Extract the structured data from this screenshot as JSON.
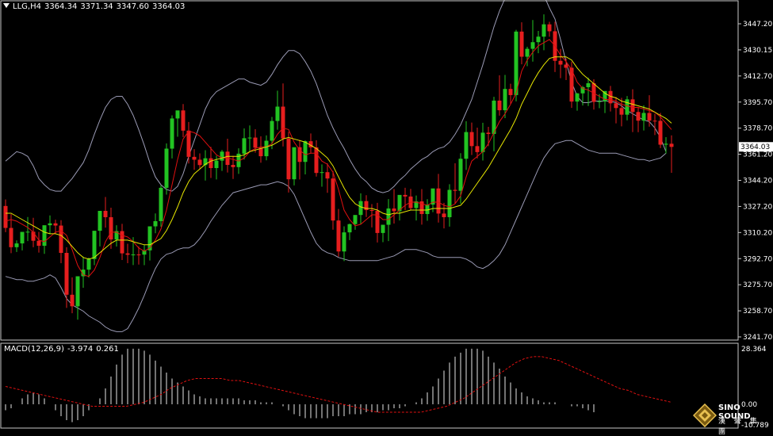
{
  "header": {
    "symbol": "LLG,H4",
    "open": "3364.34",
    "high": "3371.34",
    "low": "3347.60",
    "close": "3364.03"
  },
  "price_axis": {
    "labels": [
      "3447.20",
      "3430.15",
      "3412.70",
      "3395.70",
      "3378.70",
      "3361.20",
      "3344.20",
      "3327.20",
      "3310.20",
      "3292.70",
      "3275.70",
      "3258.70",
      "3241.70"
    ],
    "current_price": "3364.03"
  },
  "macd": {
    "label": "MACD(12,26,9)",
    "main": "-3.974",
    "signal": "0.261",
    "axis_labels": [
      "28.364",
      "0.00",
      "-10.789"
    ]
  },
  "logo": {
    "name": "SINO SOUND",
    "subtitle": "漢 聲 集 團"
  },
  "colors": {
    "background": "#000000",
    "bull_candle": "#22c322",
    "bear_candle": "#e61e1e",
    "bollinger": "#9a9ab4",
    "fast_ma": "#e01010",
    "slow_ma": "#e6e600",
    "macd_hist": "#e6e6e6",
    "macd_signal": "#e01010",
    "grid_frame": "#c8c8c8"
  },
  "chart_data": {
    "type": "candlestick",
    "price_range": [
      3241.7,
      3457.0
    ],
    "opens": [
      3326.6,
      3312.7,
      3300.5,
      3302.9,
      3310.2,
      3310.3,
      3304.6,
      3301.4,
      3314.4,
      3315.6,
      3314.2,
      3296.9,
      3270.4,
      3263.1,
      3282.1,
      3286.3,
      3293.0,
      3310.9,
      3323.5,
      3319.5,
      3305.4,
      3310.7,
      3296.6,
      3295.7,
      3295.9,
      3295.8,
      3298.5,
      3313.7,
      3317.0,
      3338.1,
      3362.9,
      3382.0,
      3387.1,
      3374.3,
      3357.7,
      3355.9,
      3352.5,
      3356.8,
      3350.6,
      3355.3,
      3361.0,
      3352.6,
      3351.2,
      3359.7,
      3369.5,
      3369.9,
      3363.5,
      3358.1,
      3367.9,
      3380.4,
      3389.5,
      3369.3,
      3343.5,
      3363.8,
      3354.5,
      3367.6,
      3363.7,
      3347.5,
      3348.0,
      3344.0,
      3317.4,
      3297.8,
      3309.9,
      3315.1,
      3320.9,
      3329.7,
      3324.0,
      3323.5,
      3309.5,
      3314.7,
      3325.0,
      3323.3,
      3333.6,
      3332.6,
      3325.3,
      3329.5,
      3321.5,
      3327.5,
      3337.7,
      3321.8,
      3319.5,
      3336.8,
      3336.2,
      3356.5,
      3373.4,
      3364.5,
      3360.7,
      3373.0,
      3372.2,
      3393.3,
      3387.2,
      3400.7,
      3396.8,
      3437.0,
      3421.1,
      3426.1,
      3430.3,
      3433.8,
      3441.6,
      3437.2,
      3418.5,
      3416.1,
      3414.1,
      3392.7,
      3397.9,
      3401.8,
      3404.3,
      3392.5,
      3392.9,
      3399.4,
      3391.6,
      3388.6,
      3384.4,
      3394.1,
      3386.1,
      3380.6,
      3385.5,
      3380.6,
      3380.5,
      3365.4,
      3366.0
    ],
    "highs": [
      3330.7,
      3321.5,
      3304.8,
      3307.1,
      3319.6,
      3319.1,
      3310.2,
      3305.4,
      3320.6,
      3317.9,
      3317.6,
      3300.5,
      3281.4,
      3269.3,
      3294.5,
      3293.9,
      3300.8,
      3316.2,
      3332.3,
      3325.5,
      3314.4,
      3315.3,
      3302.7,
      3306.9,
      3300.9,
      3302.0,
      3313.4,
      3321.9,
      3339.6,
      3366.2,
      3384.0,
      3385.5,
      3391.1,
      3379.8,
      3362.6,
      3359.9,
      3361.9,
      3364.0,
      3358.4,
      3362.1,
      3369.2,
      3358.4,
      3363.1,
      3375.7,
      3377.6,
      3375.2,
      3370.7,
      3371.3,
      3383.0,
      3399.6,
      3404.2,
      3373.6,
      3361.6,
      3368.4,
      3368.1,
      3372.5,
      3368.2,
      3352.9,
      3353.6,
      3348.7,
      3324.7,
      3313.7,
      3315.4,
      3319.5,
      3334.6,
      3333.4,
      3327.8,
      3328.6,
      3314.6,
      3331.0,
      3337.3,
      3325.5,
      3338.1,
      3337.4,
      3333.2,
      3337.3,
      3330.9,
      3336.7,
      3346.9,
      3328.6,
      3340.4,
      3353.6,
      3360.0,
      3380.3,
      3379.4,
      3376.2,
      3379.3,
      3376.7,
      3395.7,
      3409.3,
      3409.6,
      3404.0,
      3438.1,
      3442.9,
      3427.4,
      3444.3,
      3437.4,
      3447.9,
      3443.2,
      3443.2,
      3426.1,
      3420.0,
      3418.0,
      3398.1,
      3402.6,
      3407.9,
      3406.8,
      3397.4,
      3398.1,
      3402.6,
      3395.6,
      3395.1,
      3396.2,
      3400.5,
      3389.2,
      3390.3,
      3396.7,
      3385.0,
      3385.5,
      3370.2,
      3371.3
    ],
    "lows": [
      3310.0,
      3296.7,
      3297.5,
      3298.5,
      3304.4,
      3300.5,
      3297.1,
      3296.3,
      3308.8,
      3309.2,
      3290.4,
      3262.1,
      3258.7,
      3254.6,
      3274.8,
      3281.2,
      3289.1,
      3301.0,
      3312.9,
      3299.5,
      3300.9,
      3292.4,
      3290.4,
      3289.2,
      3289.5,
      3289.1,
      3292.1,
      3309.3,
      3313.5,
      3333.8,
      3356.7,
      3370.4,
      3370.2,
      3353.5,
      3349.5,
      3350.2,
      3342.7,
      3344.3,
      3343.4,
      3348.8,
      3347.8,
      3343.7,
      3346.9,
      3356.0,
      3361.1,
      3360.4,
      3354.0,
      3355.5,
      3362.6,
      3374.9,
      3364.3,
      3335.1,
      3339.6,
      3343.4,
      3346.6,
      3359.9,
      3345.2,
      3338.8,
      3334.9,
      3311.6,
      3294.5,
      3291.7,
      3305.0,
      3311.5,
      3314.9,
      3319.6,
      3313.0,
      3303.5,
      3303.7,
      3304.4,
      3315.5,
      3317.4,
      3324.0,
      3323.9,
      3317.4,
      3314.8,
      3317.2,
      3322.7,
      3316.1,
      3312.4,
      3313.5,
      3328.0,
      3328.0,
      3349.4,
      3358.9,
      3356.7,
      3355.4,
      3364.5,
      3361.2,
      3383.8,
      3382.2,
      3391.3,
      3392.8,
      3416.3,
      3415.1,
      3418.0,
      3423.3,
      3425.2,
      3433.7,
      3411.4,
      3407.5,
      3406.3,
      3388.7,
      3386.9,
      3390.2,
      3389.9,
      3387.6,
      3388.5,
      3385.4,
      3386.4,
      3378.9,
      3377.0,
      3380.8,
      3373.4,
      3373.3,
      3374.4,
      3376.8,
      3371.5,
      3363.3,
      3359.8,
      3347.6
    ],
    "closes": [
      3312.7,
      3300.5,
      3302.9,
      3310.2,
      3310.3,
      3304.6,
      3301.4,
      3314.4,
      3315.6,
      3314.2,
      3296.9,
      3270.4,
      3263.1,
      3282.1,
      3286.3,
      3293.0,
      3310.9,
      3323.5,
      3319.5,
      3305.4,
      3310.7,
      3296.6,
      3295.7,
      3295.9,
      3295.8,
      3298.5,
      3313.7,
      3317.0,
      3338.1,
      3362.9,
      3382.0,
      3387.1,
      3374.3,
      3357.7,
      3355.9,
      3352.5,
      3356.8,
      3350.6,
      3355.3,
      3361.0,
      3352.6,
      3351.2,
      3359.7,
      3369.5,
      3369.9,
      3363.5,
      3358.1,
      3367.9,
      3380.4,
      3389.5,
      3369.3,
      3343.5,
      3363.8,
      3354.5,
      3367.6,
      3363.7,
      3347.5,
      3348.0,
      3344.0,
      3317.4,
      3297.8,
      3309.9,
      3315.1,
      3320.9,
      3329.7,
      3324.0,
      3323.5,
      3309.5,
      3314.7,
      3325.0,
      3323.3,
      3333.6,
      3332.6,
      3325.3,
      3329.5,
      3321.5,
      3327.5,
      3337.7,
      3321.8,
      3319.5,
      3336.8,
      3336.2,
      3356.5,
      3373.4,
      3364.5,
      3360.7,
      3373.0,
      3372.2,
      3393.3,
      3387.2,
      3400.7,
      3396.8,
      3437.0,
      3421.1,
      3426.1,
      3430.3,
      3433.8,
      3441.6,
      3437.2,
      3418.5,
      3416.1,
      3414.1,
      3392.7,
      3397.9,
      3401.8,
      3404.3,
      3392.5,
      3392.9,
      3399.4,
      3391.6,
      3388.6,
      3384.4,
      3394.1,
      3386.1,
      3380.6,
      3385.5,
      3380.6,
      3380.5,
      3365.4,
      3366.0,
      3364.0
    ],
    "bollinger_upper": [
      3355,
      3358,
      3361,
      3360,
      3358,
      3352,
      3344,
      3340,
      3337,
      3336,
      3336,
      3340,
      3344,
      3349,
      3354,
      3362,
      3372,
      3381,
      3389,
      3394,
      3396,
      3396,
      3391,
      3384,
      3375,
      3365,
      3354,
      3345,
      3340,
      3337,
      3336,
      3339,
      3347,
      3358,
      3368,
      3378,
      3388,
      3395,
      3399,
      3401,
      3403,
      3405,
      3407,
      3407,
      3405,
      3404,
      3403,
      3405,
      3410,
      3416,
      3421,
      3425,
      3425,
      3423,
      3418,
      3412,
      3404,
      3394,
      3384,
      3376,
      3369,
      3363,
      3356,
      3350,
      3345,
      3342,
      3338,
      3336,
      3335,
      3336,
      3339,
      3343,
      3346,
      3350,
      3353,
      3356,
      3358,
      3361,
      3363,
      3364,
      3367,
      3372,
      3378,
      3386,
      3394,
      3405,
      3416,
      3428,
      3440,
      3450,
      3458,
      3464,
      3468,
      3471,
      3471,
      3470,
      3465,
      3460,
      3452,
      3445,
      3432,
      3418,
      3405,
      3396,
      3392,
      3392,
      3393,
      3393,
      3393,
      3393,
      3392,
      3390,
      3387,
      3385,
      3383,
      3381,
      3380,
      3376,
      3370,
      3361
    ],
    "bollinger_lower": [
      3282,
      3281,
      3280,
      3280,
      3279,
      3279,
      3280,
      3281,
      3283,
      3281,
      3275,
      3268,
      3264,
      3262,
      3260,
      3257,
      3255,
      3253,
      3250,
      3248,
      3247,
      3247,
      3249,
      3255,
      3262,
      3270,
      3279,
      3287,
      3293,
      3296,
      3297,
      3299,
      3300,
      3300,
      3302,
      3306,
      3311,
      3317,
      3322,
      3327,
      3331,
      3335,
      3336,
      3337,
      3338,
      3339,
      3340,
      3340,
      3341,
      3342,
      3341,
      3339,
      3334,
      3326,
      3318,
      3310,
      3303,
      3299,
      3297,
      3296,
      3294,
      3293,
      3292,
      3292,
      3292,
      3292,
      3292,
      3292,
      3293,
      3294,
      3295,
      3297,
      3299,
      3299,
      3299,
      3298,
      3297,
      3295,
      3294,
      3294,
      3294,
      3294,
      3294,
      3293,
      3291,
      3288,
      3287,
      3289,
      3292,
      3296,
      3302,
      3310,
      3318,
      3326,
      3334,
      3342,
      3350,
      3357,
      3362,
      3366,
      3367,
      3368,
      3368,
      3366,
      3364,
      3362,
      3361,
      3360,
      3360,
      3360,
      3360,
      3359,
      3358,
      3357,
      3356,
      3356,
      3355,
      3356,
      3357,
      3360
    ],
    "fast_ma": [
      3317,
      3318,
      3317,
      3315,
      3313,
      3310,
      3305,
      3304,
      3307,
      3310,
      3311,
      3308,
      3299,
      3289,
      3283,
      3282,
      3286,
      3294,
      3304,
      3310,
      3310,
      3308,
      3307,
      3304,
      3300,
      3298,
      3300,
      3305,
      3312,
      3324,
      3340,
      3356,
      3369,
      3374,
      3373,
      3371,
      3367,
      3363,
      3359,
      3357,
      3357,
      3356,
      3355,
      3357,
      3361,
      3363,
      3364,
      3364,
      3366,
      3372,
      3376,
      3375,
      3367,
      3362,
      3359,
      3360,
      3360,
      3355,
      3353,
      3348,
      3337,
      3324,
      3318,
      3314,
      3315,
      3318,
      3321,
      3321,
      3318,
      3318,
      3321,
      3324,
      3327,
      3329,
      3329,
      3328,
      3327,
      3329,
      3329,
      3327,
      3326,
      3328,
      3333,
      3345,
      3355,
      3358,
      3361,
      3366,
      3373,
      3380,
      3385,
      3391,
      3398,
      3412,
      3419,
      3424,
      3428,
      3430,
      3432,
      3428,
      3422,
      3418,
      3413,
      3405,
      3401,
      3400,
      3398,
      3396,
      3394,
      3394,
      3393,
      3391,
      3390,
      3389,
      3389,
      3388,
      3387,
      3386,
      3383,
      3379,
      3375
    ],
    "slow_ma": [
      3322,
      3322,
      3320,
      3318,
      3316,
      3314,
      3312,
      3310,
      3309,
      3309,
      3308,
      3305,
      3301,
      3297,
      3294,
      3293,
      3294,
      3297,
      3300,
      3303,
      3305,
      3305,
      3305,
      3304,
      3303,
      3302,
      3302,
      3304,
      3306,
      3311,
      3318,
      3326,
      3335,
      3342,
      3347,
      3350,
      3353,
      3355,
      3356,
      3357,
      3358,
      3358,
      3358,
      3359,
      3361,
      3362,
      3363,
      3364,
      3365,
      3367,
      3369,
      3370,
      3369,
      3368,
      3367,
      3365,
      3363,
      3360,
      3357,
      3352,
      3345,
      3338,
      3332,
      3328,
      3326,
      3325,
      3325,
      3324,
      3322,
      3321,
      3322,
      3322,
      3323,
      3324,
      3324,
      3324,
      3324,
      3325,
      3325,
      3325,
      3325,
      3326,
      3327,
      3331,
      3336,
      3341,
      3346,
      3351,
      3357,
      3363,
      3369,
      3375,
      3382,
      3391,
      3398,
      3405,
      3411,
      3416,
      3420,
      3421,
      3421,
      3421,
      3419,
      3414,
      3410,
      3407,
      3404,
      3401,
      3398,
      3396,
      3395,
      3393,
      3392,
      3391,
      3390,
      3389,
      3388,
      3386,
      3384,
      3382,
      3379
    ],
    "macd_hist": [
      -3,
      -2,
      0,
      3,
      5,
      6,
      5,
      3,
      0,
      -3,
      -6,
      -8,
      -9,
      -8,
      -6,
      -3,
      0,
      3,
      8,
      14,
      20,
      25,
      28,
      28,
      28,
      27,
      25,
      22,
      19,
      16,
      13,
      11,
      9,
      7,
      5,
      4,
      3,
      3,
      3,
      3,
      3,
      3,
      3,
      2,
      2,
      2,
      1,
      1,
      1,
      0,
      -1,
      -3,
      -5,
      -6,
      -7,
      -7,
      -7,
      -7,
      -7,
      -6,
      -6,
      -6,
      -5,
      -5,
      -5,
      -4,
      -4,
      -4,
      -3,
      -3,
      -2,
      -2,
      -1,
      0,
      1,
      3,
      6,
      9,
      13,
      17,
      21,
      24,
      26,
      28,
      28,
      28,
      27,
      24,
      21,
      18,
      14,
      11,
      8,
      6,
      4,
      3,
      2,
      1,
      1,
      1,
      0,
      0,
      -1,
      -1,
      -2,
      -3,
      -4
    ],
    "macd_signal": [
      9,
      8,
      7,
      6,
      5,
      4,
      3,
      2,
      1,
      0,
      -1,
      -1,
      -1,
      -1,
      -1,
      0,
      1,
      3,
      5,
      8,
      10,
      12,
      13,
      13,
      13,
      13,
      12,
      12,
      11,
      10,
      9,
      8,
      7,
      6,
      5,
      4,
      3,
      2,
      1,
      0,
      -1,
      -2,
      -3,
      -4,
      -4,
      -4,
      -4,
      -4,
      -4,
      -3,
      -2,
      -1,
      1,
      3,
      6,
      9,
      12,
      15,
      18,
      21,
      23,
      24,
      24,
      23,
      22,
      20,
      18,
      16,
      14,
      12,
      10,
      8,
      7,
      5,
      4,
      3,
      2,
      1
    ]
  }
}
